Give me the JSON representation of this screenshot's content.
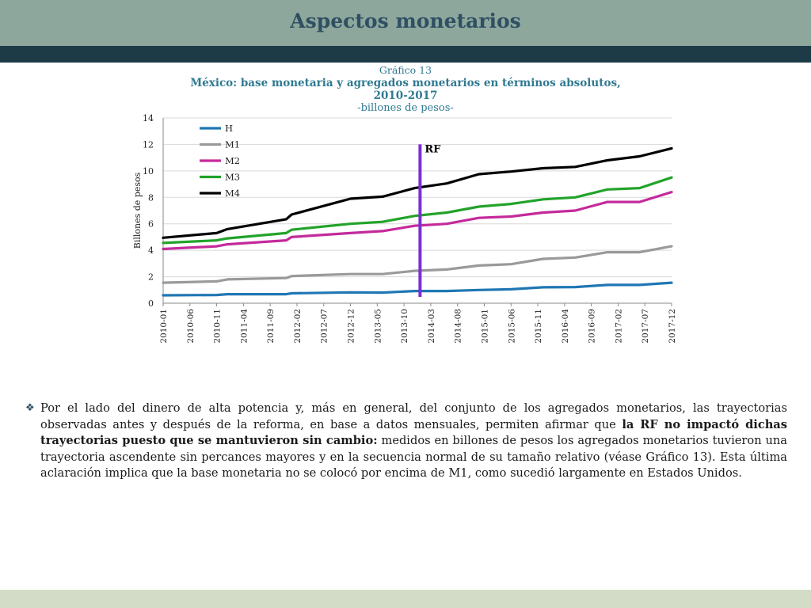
{
  "header": {
    "title": "Aspectos monetarios"
  },
  "chart_title": {
    "line1": "Gráfico 13",
    "line2": "México: base monetaria y agregados monetarios en términos absolutos,",
    "line3": "2010-2017",
    "line4": "-billones de pesos-"
  },
  "colors": {
    "header_bg": "#8ea79d",
    "header_stripe": "#1d3b47",
    "title_text": "#2f4f62",
    "chart_title": "#2f7a91",
    "footer_bg": "#d3dcc6",
    "rf_marker": "#7a2fd1"
  },
  "chart_data": {
    "type": "line",
    "ylabel": "Billones de pesos",
    "xlabel": "",
    "ylim": [
      0,
      14
    ],
    "yticks": [
      0,
      2,
      4,
      6,
      8,
      10,
      12,
      14
    ],
    "grid": true,
    "legend_position": "top-left",
    "x_start": "2010-01",
    "x_end": "2017-12",
    "xticks": [
      "2010-01",
      "2010-06",
      "2010-11",
      "2011-04",
      "2011-09",
      "2012-02",
      "2012-07",
      "2012-12",
      "2013-05",
      "2013-10",
      "2014-03",
      "2014-08",
      "2015-01",
      "2015-06",
      "2015-11",
      "2016-04",
      "2016-09",
      "2017-02",
      "2017-07",
      "2017-12"
    ],
    "annotation": {
      "label": "RF",
      "x": "2014-01",
      "color": "#7a2fd1"
    },
    "series": [
      {
        "name": "H",
        "color": "#1f77b4",
        "points": [
          [
            "2010-01",
            0.6
          ],
          [
            "2010-11",
            0.62
          ],
          [
            "2011-01",
            0.68
          ],
          [
            "2011-12",
            0.68
          ],
          [
            "2012-01",
            0.75
          ],
          [
            "2012-12",
            0.82
          ],
          [
            "2013-06",
            0.8
          ],
          [
            "2013-12",
            0.92
          ],
          [
            "2014-06",
            0.92
          ],
          [
            "2014-12",
            1.0
          ],
          [
            "2015-06",
            1.05
          ],
          [
            "2015-12",
            1.2
          ],
          [
            "2016-06",
            1.22
          ],
          [
            "2016-12",
            1.38
          ],
          [
            "2017-06",
            1.38
          ],
          [
            "2017-12",
            1.55
          ]
        ]
      },
      {
        "name": "M1",
        "color": "#9a9a9a",
        "points": [
          [
            "2010-01",
            1.55
          ],
          [
            "2010-11",
            1.65
          ],
          [
            "2011-01",
            1.8
          ],
          [
            "2011-12",
            1.9
          ],
          [
            "2012-01",
            2.05
          ],
          [
            "2012-12",
            2.2
          ],
          [
            "2013-06",
            2.2
          ],
          [
            "2013-12",
            2.45
          ],
          [
            "2014-06",
            2.55
          ],
          [
            "2014-12",
            2.85
          ],
          [
            "2015-06",
            2.95
          ],
          [
            "2015-12",
            3.35
          ],
          [
            "2016-06",
            3.45
          ],
          [
            "2016-12",
            3.85
          ],
          [
            "2017-06",
            3.85
          ],
          [
            "2017-12",
            4.3
          ]
        ]
      },
      {
        "name": "M2",
        "color": "#c42a9b",
        "points": [
          [
            "2010-01",
            4.1
          ],
          [
            "2010-11",
            4.3
          ],
          [
            "2011-01",
            4.45
          ],
          [
            "2011-12",
            4.75
          ],
          [
            "2012-01",
            5.0
          ],
          [
            "2012-12",
            5.3
          ],
          [
            "2013-06",
            5.45
          ],
          [
            "2013-12",
            5.85
          ],
          [
            "2014-06",
            6.0
          ],
          [
            "2014-12",
            6.45
          ],
          [
            "2015-06",
            6.55
          ],
          [
            "2015-12",
            6.85
          ],
          [
            "2016-06",
            7.0
          ],
          [
            "2016-12",
            7.65
          ],
          [
            "2017-06",
            7.65
          ],
          [
            "2017-12",
            8.4
          ]
        ]
      },
      {
        "name": "M3",
        "color": "#22a32a",
        "points": [
          [
            "2010-01",
            4.55
          ],
          [
            "2010-11",
            4.75
          ],
          [
            "2011-01",
            4.9
          ],
          [
            "2011-12",
            5.3
          ],
          [
            "2012-01",
            5.55
          ],
          [
            "2012-12",
            6.0
          ],
          [
            "2013-06",
            6.15
          ],
          [
            "2013-12",
            6.6
          ],
          [
            "2014-06",
            6.85
          ],
          [
            "2014-12",
            7.3
          ],
          [
            "2015-06",
            7.5
          ],
          [
            "2015-12",
            7.85
          ],
          [
            "2016-06",
            8.0
          ],
          [
            "2016-12",
            8.6
          ],
          [
            "2017-06",
            8.7
          ],
          [
            "2017-12",
            9.5
          ]
        ]
      },
      {
        "name": "M4",
        "color": "#000000",
        "points": [
          [
            "2010-01",
            4.95
          ],
          [
            "2010-11",
            5.3
          ],
          [
            "2011-01",
            5.6
          ],
          [
            "2011-12",
            6.35
          ],
          [
            "2012-01",
            6.7
          ],
          [
            "2012-12",
            7.9
          ],
          [
            "2013-06",
            8.05
          ],
          [
            "2013-12",
            8.7
          ],
          [
            "2014-06",
            9.05
          ],
          [
            "2014-12",
            9.75
          ],
          [
            "2015-06",
            9.95
          ],
          [
            "2015-12",
            10.2
          ],
          [
            "2016-06",
            10.3
          ],
          [
            "2016-12",
            10.8
          ],
          [
            "2017-06",
            11.1
          ],
          [
            "2017-12",
            11.7
          ]
        ]
      }
    ]
  },
  "body_text": {
    "bullet": "❖",
    "part1": "Por el lado del dinero de alta potencia y, más en general, del conjunto de los agregados monetarios, las trayectorias observadas antes y después de la reforma, en base a datos mensuales, permiten afirmar que ",
    "bold": "la RF no impactó dichas trayectorias puesto que se mantuvieron sin cambio:",
    "part2": " medidos en billones de pesos los agregados monetarios tuvieron una trayectoria ascendente sin percances mayores y en la secuencia normal de su tamaño relativo (véase Gráfico 13). Esta última aclaración implica que la base monetaria no se colocó por encima de M1, como sucedió largamente en Estados Unidos."
  }
}
